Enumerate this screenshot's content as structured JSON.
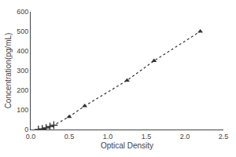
{
  "chart_data": {
    "type": "line",
    "xlabel": "Optical Density",
    "ylabel": "Concentration(pg/mL)",
    "x": [
      0.1,
      0.15,
      0.2,
      0.25,
      0.3,
      0.5,
      0.7,
      1.25,
      1.6,
      2.2
    ],
    "series": [
      {
        "type": "line",
        "line_style": "dotted",
        "color": "#333333",
        "values": [
          0,
          3,
          8,
          15,
          22,
          65,
          120,
          250,
          350,
          500
        ]
      },
      {
        "type": "scatter",
        "marker": "plus",
        "color": "#333333",
        "values": [
          0,
          3,
          8,
          15,
          22,
          null,
          null,
          null,
          null,
          null
        ]
      },
      {
        "type": "scatter",
        "marker": "triangle",
        "color": "#333333",
        "values": [
          null,
          null,
          null,
          null,
          null,
          65,
          120,
          250,
          350,
          500
        ]
      }
    ],
    "xlim": [
      0,
      2.5
    ],
    "ylim": [
      0,
      600
    ],
    "xticks": [
      {
        "value": 0,
        "label": "0.0"
      },
      0.5,
      {
        "value": 1.0,
        "label": "1.0"
      },
      1.5,
      {
        "value": 2.0,
        "label": "2.0"
      },
      2.5
    ],
    "yticks": [
      0,
      100,
      200,
      300,
      400,
      500,
      600
    ],
    "grid": false
  }
}
